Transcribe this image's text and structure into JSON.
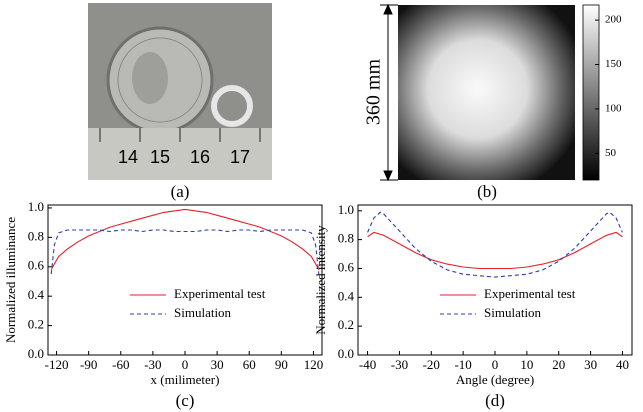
{
  "panel_a": {
    "ruler_labels": [
      "14",
      "15",
      "16",
      "17"
    ],
    "caption": "(a)"
  },
  "panel_b": {
    "dimension_label": "360 mm",
    "caption": "(b)",
    "colorbar": {
      "lim": [
        20,
        217
      ],
      "ticks": [
        50,
        100,
        150,
        200
      ]
    }
  },
  "chart_data": [
    {
      "type": "line",
      "caption": "(c)",
      "x_label": "x (milimeter)",
      "y_label": "Normalized illuminance",
      "xlim": [
        -128,
        128
      ],
      "xticks": [
        -120,
        -90,
        -60,
        -30,
        0,
        30,
        60,
        90,
        120
      ],
      "ylim": [
        0,
        1.02
      ],
      "yticks": [
        {
          "value": 0,
          "label": "0.0"
        },
        0.2,
        0.4,
        0.6,
        0.8,
        {
          "value": 1,
          "label": "1.0"
        }
      ],
      "legend": "lower-center",
      "series": [
        {
          "name": "Experimental test",
          "color": "#e8202a",
          "style": "solid",
          "x": [
            -125,
            -122,
            -118,
            -110,
            -100,
            -90,
            -80,
            -70,
            -60,
            -50,
            -40,
            -30,
            -20,
            -10,
            0,
            10,
            20,
            30,
            40,
            50,
            60,
            70,
            80,
            90,
            100,
            110,
            118,
            122,
            125
          ],
          "values": [
            0.58,
            0.62,
            0.67,
            0.72,
            0.77,
            0.81,
            0.84,
            0.87,
            0.89,
            0.91,
            0.93,
            0.95,
            0.97,
            0.98,
            0.99,
            0.98,
            0.97,
            0.95,
            0.93,
            0.91,
            0.89,
            0.87,
            0.84,
            0.81,
            0.77,
            0.72,
            0.67,
            0.62,
            0.58
          ]
        },
        {
          "name": "Simulation",
          "color": "#2a3fb0",
          "style": "dashed",
          "x": [
            -125,
            -122,
            -118,
            -110,
            -100,
            -90,
            -80,
            -70,
            -60,
            -50,
            -40,
            -30,
            -20,
            -10,
            0,
            10,
            20,
            30,
            40,
            50,
            60,
            70,
            80,
            90,
            100,
            110,
            118,
            122,
            125
          ],
          "values": [
            0.55,
            0.75,
            0.83,
            0.85,
            0.85,
            0.85,
            0.85,
            0.84,
            0.85,
            0.85,
            0.84,
            0.85,
            0.85,
            0.84,
            0.84,
            0.84,
            0.85,
            0.85,
            0.84,
            0.85,
            0.85,
            0.84,
            0.85,
            0.85,
            0.85,
            0.85,
            0.83,
            0.75,
            0.55
          ]
        }
      ]
    },
    {
      "type": "line",
      "caption": "(d)",
      "x_label": "Angle (degree)",
      "y_label": "Normalized intensity",
      "xlim": [
        -43,
        43
      ],
      "xticks": [
        -40,
        -30,
        -20,
        -10,
        0,
        10,
        20,
        30,
        40
      ],
      "ylim": [
        0,
        1.04
      ],
      "yticks": [
        {
          "value": 0,
          "label": "0.0"
        },
        0.2,
        0.4,
        0.6,
        0.8,
        {
          "value": 1,
          "label": "1.0"
        }
      ],
      "legend": "lower-center",
      "series": [
        {
          "name": "Experimental test",
          "color": "#e8202a",
          "style": "solid",
          "x": [
            -40,
            -38,
            -35,
            -30,
            -25,
            -20,
            -15,
            -10,
            -5,
            0,
            5,
            10,
            15,
            20,
            25,
            30,
            35,
            38,
            40
          ],
          "values": [
            0.82,
            0.85,
            0.83,
            0.77,
            0.71,
            0.66,
            0.63,
            0.61,
            0.6,
            0.6,
            0.6,
            0.61,
            0.63,
            0.66,
            0.71,
            0.77,
            0.83,
            0.85,
            0.82
          ]
        },
        {
          "name": "Simulation",
          "color": "#2a3fb0",
          "style": "dashed",
          "x": [
            -40,
            -38,
            -36,
            -35,
            -30,
            -25,
            -20,
            -15,
            -10,
            -5,
            0,
            5,
            10,
            15,
            20,
            25,
            30,
            35,
            36,
            38,
            40
          ],
          "values": [
            0.85,
            0.95,
            0.99,
            0.98,
            0.86,
            0.74,
            0.65,
            0.59,
            0.56,
            0.55,
            0.54,
            0.55,
            0.56,
            0.59,
            0.65,
            0.74,
            0.86,
            0.98,
            0.99,
            0.95,
            0.85
          ]
        }
      ]
    }
  ]
}
